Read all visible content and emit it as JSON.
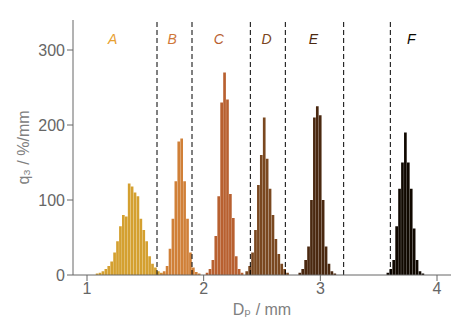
{
  "chart_data": {
    "type": "bar",
    "xlabel": "Dₚ / mm",
    "ylabel": "q₃ / %/mm",
    "xlim": [
      0.88,
      4.12
    ],
    "ylim": [
      0,
      340
    ],
    "xticks": [
      1,
      2,
      3,
      4
    ],
    "yticks": [
      0,
      100,
      200,
      300
    ],
    "grid": false,
    "series": [
      {
        "color": "#D4A030",
        "x": [
          1.0875,
          1.1125,
          1.1375,
          1.1625,
          1.1875,
          1.2125,
          1.2375,
          1.2625,
          1.2875,
          1.3125,
          1.3375,
          1.3625,
          1.3875,
          1.4125,
          1.4375,
          1.4625,
          1.4875,
          1.5125,
          1.5375,
          1.5625,
          1.5875,
          1.6125,
          1.6375,
          1.6625
        ],
        "values": [
          2,
          3,
          5,
          8,
          12,
          18,
          30,
          45,
          65,
          80,
          78,
          122,
          118,
          110,
          105,
          75,
          60,
          45,
          25,
          15,
          10,
          5,
          3,
          2
        ]
      },
      {
        "color": "#D08038",
        "x": [
          1.6375,
          1.6625,
          1.6875,
          1.7125,
          1.7375,
          1.7625,
          1.7875,
          1.8125,
          1.8375,
          1.8625,
          1.8875,
          1.9125,
          1.9375,
          1.9625
        ],
        "values": [
          2,
          5,
          12,
          35,
          75,
          125,
          178,
          182,
          125,
          75,
          30,
          10,
          4,
          2
        ]
      },
      {
        "color": "#B86030",
        "x": [
          2.03,
          2.055,
          2.08,
          2.105,
          2.13,
          2.155,
          2.18,
          2.205,
          2.23,
          2.255,
          2.28,
          2.305,
          2.33
        ],
        "values": [
          3,
          8,
          20,
          52,
          105,
          230,
          270,
          234,
          108,
          76,
          25,
          8,
          3
        ]
      },
      {
        "color": "#7A4820",
        "x": [
          2.37,
          2.395,
          2.42,
          2.445,
          2.47,
          2.495,
          2.52,
          2.545,
          2.57,
          2.595,
          2.62,
          2.645,
          2.67,
          2.695,
          2.72
        ],
        "values": [
          5,
          12,
          30,
          60,
          120,
          160,
          210,
          155,
          115,
          80,
          48,
          28,
          15,
          8,
          3
        ]
      },
      {
        "color": "#4A2810",
        "x": [
          2.825,
          2.85,
          2.875,
          2.9,
          2.925,
          2.95,
          2.975,
          3.0,
          3.025,
          3.05,
          3.075,
          3.1,
          3.125
        ],
        "values": [
          3,
          8,
          20,
          38,
          100,
          210,
          225,
          213,
          100,
          38,
          15,
          5,
          2
        ]
      },
      {
        "color": "#100800",
        "x": [
          3.58,
          3.605,
          3.63,
          3.655,
          3.68,
          3.705,
          3.73,
          3.755,
          3.78,
          3.805,
          3.83,
          3.855,
          3.88
        ],
        "values": [
          3,
          8,
          20,
          65,
          115,
          150,
          190,
          150,
          115,
          62,
          20,
          5,
          2
        ]
      }
    ],
    "reference_lines": {
      "x": [
        1.6,
        1.9,
        2.4,
        2.7,
        3.2,
        3.6
      ],
      "line_style": "dashed",
      "color": "#000000"
    },
    "annotations": [
      {
        "text": "A",
        "x": 1.22,
        "y": 315,
        "color": "#E8A030"
      },
      {
        "text": "B",
        "x": 1.73,
        "y": 315,
        "color": "#D07838"
      },
      {
        "text": "C",
        "x": 2.13,
        "y": 315,
        "color": "#B86030"
      },
      {
        "text": "D",
        "x": 2.54,
        "y": 315,
        "color": "#7A4520"
      },
      {
        "text": "E",
        "x": 2.94,
        "y": 315,
        "color": "#4A2810"
      },
      {
        "text": "F",
        "x": 3.78,
        "y": 315,
        "color": "#0A0800"
      }
    ]
  }
}
